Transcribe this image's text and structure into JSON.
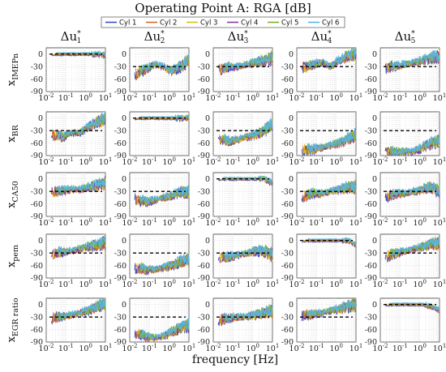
{
  "chart_data": {
    "type": "line",
    "title": "Operating Point A: RGA [dB]",
    "xlabel": "frequency [Hz]",
    "x_scale": "log",
    "xlim": [
      0.01,
      10
    ],
    "ylim": [
      -90,
      15
    ],
    "x_ticks": [
      {
        "base": "10",
        "exp": "-2"
      },
      {
        "base": "10",
        "exp": "-1"
      },
      {
        "base": "10",
        "exp": "0"
      },
      {
        "base": "10",
        "exp": "1"
      }
    ],
    "y_ticks": [
      "0",
      "-30",
      "-60",
      "-90"
    ],
    "grid": true,
    "legend_position": "top",
    "columns": [
      {
        "main": "Δu",
        "sub": "1",
        "sup": "*"
      },
      {
        "main": "Δu",
        "sub": "2",
        "sup": "*"
      },
      {
        "main": "Δu",
        "sub": "3",
        "sup": "*"
      },
      {
        "main": "Δu",
        "sub": "4",
        "sup": "*"
      },
      {
        "main": "Δu",
        "sub": "5",
        "sup": "*"
      }
    ],
    "rows": [
      {
        "main": "x",
        "sub": "IMEPn"
      },
      {
        "main": "x",
        "sub": "BR"
      },
      {
        "main": "x",
        "sub": "CA50"
      },
      {
        "main": "x",
        "sub": "pem"
      },
      {
        "main": "x",
        "sub": "EGR ratio"
      }
    ],
    "series": [
      {
        "name": "Cyl 1",
        "color": "#3b4fc4"
      },
      {
        "name": "Cyl 2",
        "color": "#d9692c"
      },
      {
        "name": "Cyl 3",
        "color": "#d8c020"
      },
      {
        "name": "Cyl 4",
        "color": "#8a3a9a"
      },
      {
        "name": "Cyl 5",
        "color": "#7cb030"
      },
      {
        "name": "Cyl 6",
        "color": "#5ab4e0"
      }
    ],
    "reference_line_dB": [
      [
        0,
        -30,
        -30,
        -30,
        -30
      ],
      [
        -30,
        0,
        -30,
        -30,
        -30
      ],
      [
        -30,
        -30,
        0,
        -30,
        -30
      ],
      [
        -30,
        -30,
        -30,
        0,
        -30
      ],
      [
        -30,
        -30,
        -30,
        -30,
        0
      ]
    ],
    "panel_profiles_dB": [
      [
        [
          0,
          0,
          0,
          0,
          0,
          0,
          0,
          -2
        ],
        [
          -50,
          -45,
          -35,
          -25,
          -30,
          -40,
          -30,
          -15
        ],
        [
          -40,
          -35,
          -30,
          -30,
          -25,
          -20,
          -15,
          -10
        ],
        [
          -30,
          -30,
          -25,
          -20,
          -30,
          -15,
          -5,
          0
        ],
        [
          -40,
          -30,
          -28,
          -25,
          -20,
          -15,
          -10,
          -5
        ]
      ],
      [
        [
          -45,
          -40,
          -45,
          -35,
          -35,
          -20,
          -10,
          0
        ],
        [
          0,
          0,
          0,
          0,
          0,
          0,
          0,
          0
        ],
        [
          -45,
          -50,
          -55,
          -50,
          -45,
          -40,
          -30,
          -15
        ],
        [
          -70,
          -75,
          -75,
          -70,
          -65,
          -60,
          -50,
          -40
        ],
        [
          -75,
          -80,
          -82,
          -80,
          -80,
          -70,
          -60,
          -55
        ]
      ],
      [
        [
          -30,
          -30,
          -28,
          -25,
          -25,
          -20,
          -15,
          -10
        ],
        [
          -40,
          -50,
          -55,
          -50,
          -45,
          -40,
          -30,
          -35
        ],
        [
          0,
          0,
          0,
          0,
          0,
          0,
          0,
          -10
        ],
        [
          -45,
          -40,
          -35,
          -35,
          -30,
          -25,
          -20,
          -20
        ],
        [
          -40,
          -40,
          -35,
          -35,
          -30,
          -25,
          -20,
          -30
        ]
      ],
      [
        [
          -30,
          -30,
          -28,
          -25,
          -20,
          -15,
          -10,
          -5
        ],
        [
          -60,
          -65,
          -70,
          -70,
          -65,
          -60,
          -50,
          -45
        ],
        [
          -40,
          -40,
          -38,
          -35,
          -30,
          -25,
          -25,
          -35
        ],
        [
          0,
          0,
          0,
          0,
          0,
          0,
          0,
          -10
        ],
        [
          -40,
          -35,
          -30,
          -25,
          -20,
          -15,
          -10,
          -5
        ]
      ],
      [
        [
          -30,
          -30,
          -28,
          -25,
          -20,
          -15,
          -5,
          0
        ],
        [
          -65,
          -70,
          -78,
          -80,
          -75,
          -65,
          -55,
          -50
        ],
        [
          -40,
          -35,
          -32,
          -30,
          -28,
          -25,
          -20,
          -15
        ],
        [
          -30,
          -25,
          -22,
          -20,
          -15,
          -10,
          -5,
          0
        ],
        [
          0,
          0,
          0,
          0,
          0,
          0,
          -5,
          -15
        ]
      ]
    ]
  }
}
